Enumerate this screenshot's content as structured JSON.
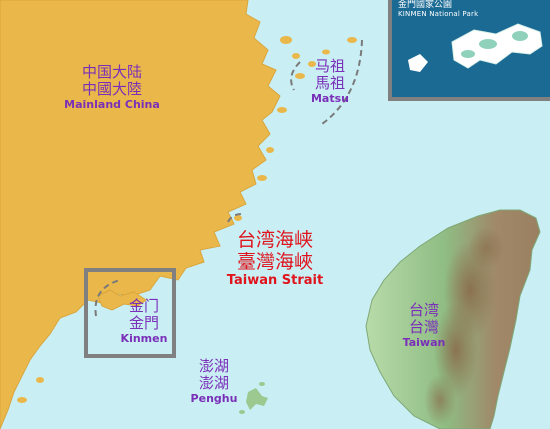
{
  "map": {
    "regions": [
      {
        "id": "mainland",
        "zh_simplified": "中国大陆",
        "zh_traditional": "中國大陸",
        "en": "Mainland China"
      },
      {
        "id": "matsu",
        "zh_simplified": "马祖",
        "zh_traditional": "馬祖",
        "en": "Matsu"
      },
      {
        "id": "strait",
        "zh_simplified": "台湾海峡",
        "zh_traditional": "臺灣海峽",
        "en": "Taiwan Strait"
      },
      {
        "id": "kinmen",
        "zh_simplified": "金门",
        "zh_traditional": "金門",
        "en": "Kinmen"
      },
      {
        "id": "penghu",
        "zh_simplified": "澎湖",
        "zh_traditional": "澎湖",
        "en": "Penghu"
      },
      {
        "id": "taiwan",
        "zh_simplified": "台湾",
        "zh_traditional": "台灣",
        "en": "Taiwan"
      }
    ],
    "inset": {
      "title_zh": "金門國家公園",
      "title_en": "KINMEN National Park"
    },
    "colors": {
      "sea": "#c9eff5",
      "mainland": "#eab84a",
      "taiwan_lowland": "#9cc98f",
      "taiwan_highland": "#a88a66",
      "label_purple": "#7a2fb8",
      "label_red": "#e0141c",
      "inset_bg": "#1a6a94",
      "frame_gray": "#808080"
    }
  }
}
